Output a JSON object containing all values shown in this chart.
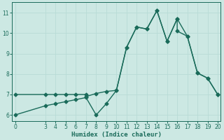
{
  "xlabel": "Humidex (Indice chaleur)",
  "line1_x": [
    0,
    3,
    4,
    5,
    6,
    7,
    7,
    8,
    9,
    10,
    11,
    12,
    13,
    14,
    15,
    16,
    16,
    17,
    18,
    19,
    20
  ],
  "line1_y": [
    7.0,
    7.0,
    7.0,
    7.0,
    7.0,
    7.0,
    6.9,
    7.05,
    7.15,
    7.2,
    9.3,
    10.3,
    10.2,
    11.1,
    9.6,
    10.7,
    10.1,
    9.85,
    8.05,
    7.8,
    7.0
  ],
  "line2_x": [
    0,
    3,
    4,
    5,
    6,
    7,
    8,
    9,
    10,
    11,
    12,
    13,
    14,
    15,
    16,
    17,
    18,
    19,
    20
  ],
  "line2_y": [
    6.0,
    6.45,
    6.55,
    6.65,
    6.75,
    6.85,
    6.0,
    6.55,
    7.2,
    9.3,
    10.3,
    10.2,
    11.1,
    9.6,
    10.7,
    9.85,
    8.05,
    7.8,
    7.0
  ],
  "line_color": "#1a6b5a",
  "marker": "D",
  "markersize": 2.5,
  "linewidth": 1.0,
  "xlim": [
    -0.3,
    20.3
  ],
  "ylim": [
    5.7,
    11.5
  ],
  "yticks": [
    6,
    7,
    8,
    9,
    10,
    11
  ],
  "xticks": [
    0,
    3,
    4,
    5,
    6,
    7,
    8,
    9,
    10,
    11,
    12,
    13,
    14,
    15,
    16,
    17,
    18,
    19,
    20
  ],
  "grid_color": "#b8dcd6",
  "bg_color": "#cce8e3",
  "tick_color": "#1a6b5a",
  "label_color": "#1a6b5a"
}
